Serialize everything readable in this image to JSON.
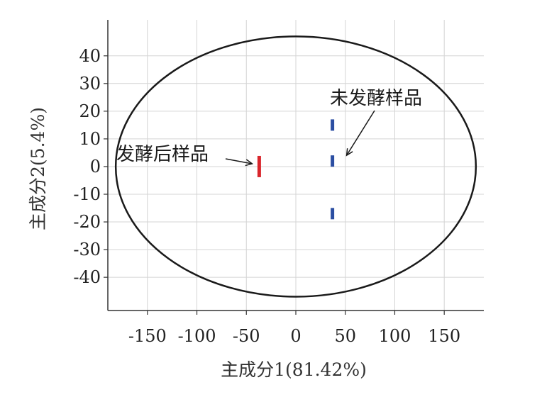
{
  "chart_data": {
    "type": "scatter",
    "xlabel": "主成分1(81.42%)",
    "ylabel": "主成分2(5.4%)",
    "xlim": [
      -190,
      190
    ],
    "ylim": [
      -52,
      53
    ],
    "x_ticks": [
      -150,
      -100,
      -50,
      0,
      50,
      100,
      150
    ],
    "y_ticks": [
      40,
      30,
      20,
      10,
      0,
      -10,
      -20,
      -30,
      -40
    ],
    "x_tick_labels": [
      "-150",
      "-100",
      "-50",
      "0",
      "50",
      "100",
      "150"
    ],
    "y_tick_labels": [
      "40",
      "30",
      "20",
      "10",
      "0",
      "-10",
      "-20",
      "-30",
      "-40"
    ],
    "grid": true,
    "confidence_ellipse": {
      "center": [
        0,
        0
      ],
      "x_radius": 182,
      "y_radius": 47
    },
    "series": [
      {
        "color": "#d9262c",
        "points": [
          {
            "x": -37,
            "y": 0
          }
        ]
      },
      {
        "color": "#2b4ea2",
        "points": [
          {
            "x": 37,
            "y": 15
          },
          {
            "x": 37,
            "y": 2
          },
          {
            "x": 37,
            "y": -17
          }
        ]
      }
    ],
    "annotations": [
      {
        "text": "发酵后样品",
        "target": {
          "x": -37,
          "y": 0
        }
      },
      {
        "text": "未发酵样品",
        "target": {
          "x": 37,
          "y": 2
        }
      }
    ]
  }
}
